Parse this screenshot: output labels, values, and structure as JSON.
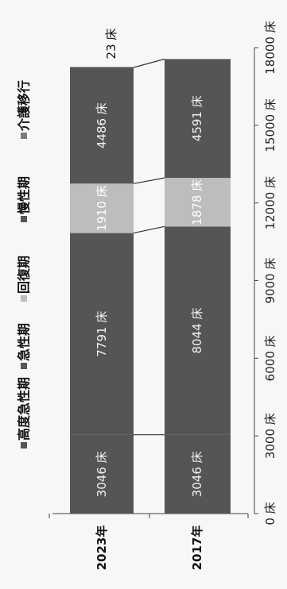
{
  "chart_data": {
    "type": "bar",
    "orientation": "horizontal-stacked",
    "rotation": "image rotated 90deg counter-clockwise",
    "categories": [
      "2023年",
      "2017年"
    ],
    "series": [
      {
        "name": "高度急性期",
        "color": "#555555",
        "values": [
          3046,
          3046
        ],
        "labels": [
          "3046 床",
          "3046 床"
        ]
      },
      {
        "name": "急性期",
        "color": "#555555",
        "values": [
          7791,
          8044
        ],
        "labels": [
          "7791 床",
          "8044 床"
        ]
      },
      {
        "name": "回復期",
        "color": "#bdbdbd",
        "values": [
          1910,
          1878
        ],
        "labels": [
          "1910 床",
          "1878 床"
        ]
      },
      {
        "name": "慢性期",
        "color": "#555555",
        "values": [
          4486,
          4591
        ],
        "labels": [
          "4486 床",
          "4591 床"
        ]
      },
      {
        "name": "介護移行",
        "color": "#7a7a7a",
        "values": [
          23,
          0
        ],
        "labels": [
          "23 床",
          ""
        ]
      }
    ],
    "xlim": [
      0,
      18000
    ],
    "ticks": [
      0,
      3000,
      6000,
      9000,
      12000,
      15000,
      18000
    ],
    "tick_labels": [
      "0 床",
      "3000 床",
      "6000 床",
      "9000 床",
      "12000 床",
      "15000 床",
      "18000 床"
    ],
    "legend": "top",
    "grid": false
  }
}
